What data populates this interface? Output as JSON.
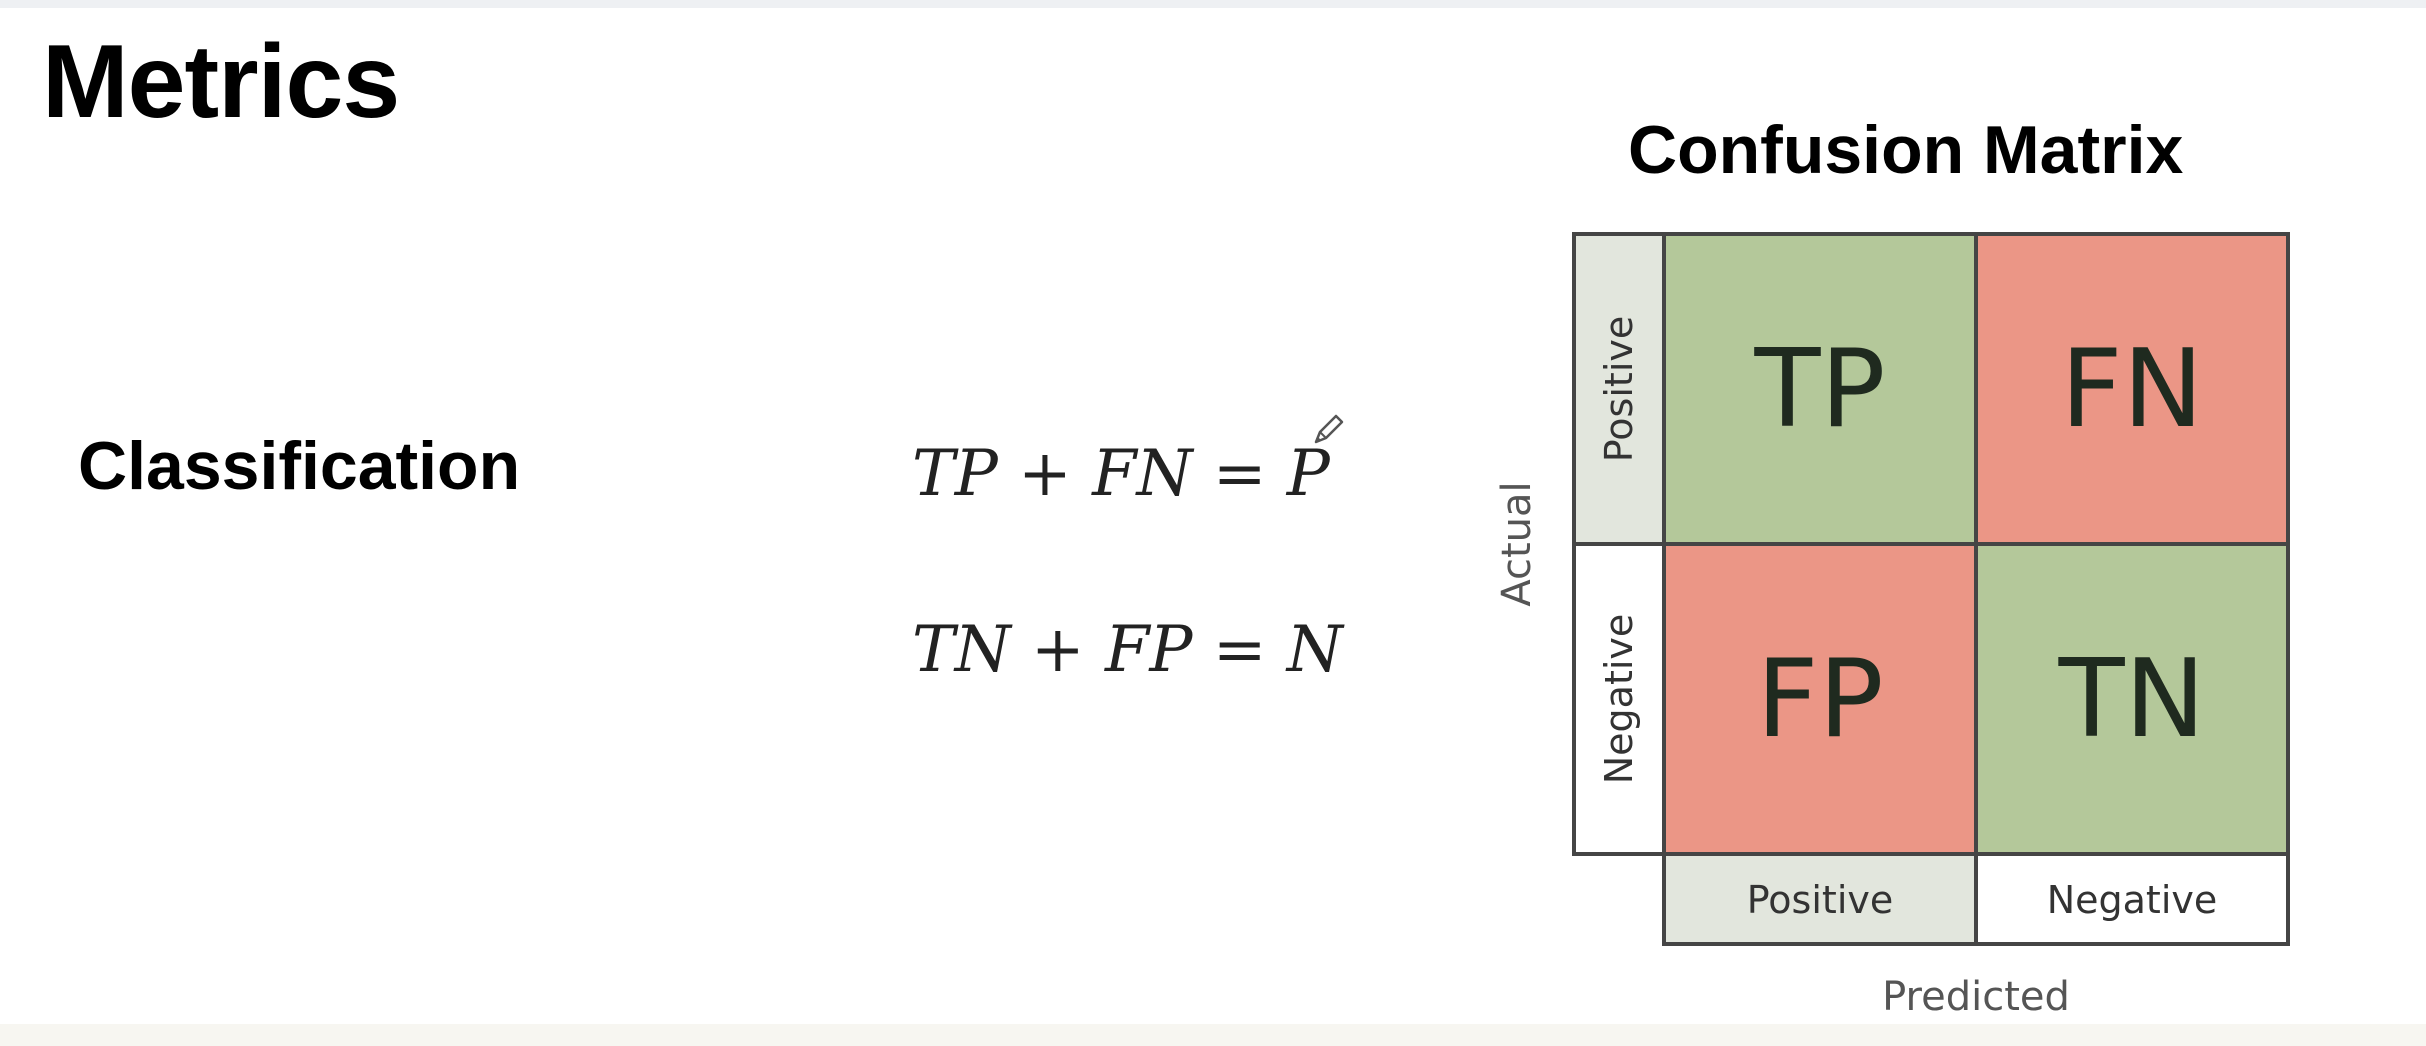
{
  "title": "Metrics",
  "section_label": "Classification",
  "equations": [
    {
      "lhs_a": "TP",
      "op": "+",
      "lhs_b": "FN",
      "eq": "=",
      "rhs": "P"
    },
    {
      "lhs_a": "TN",
      "op": "+",
      "lhs_b": "FP",
      "eq": "=",
      "rhs": "N"
    }
  ],
  "confusion_matrix": {
    "title": "Confusion Matrix",
    "actual_axis_label": "Actual",
    "predicted_axis_label": "Predicted",
    "row_labels": [
      "Positive",
      "Negative"
    ],
    "col_labels": [
      "Positive",
      "Negative"
    ],
    "cells": [
      [
        "TP",
        "FN"
      ],
      [
        "FP",
        "TN"
      ]
    ],
    "colors": {
      "correct": "#b4c89a",
      "incorrect": "#eb9686",
      "header_highlight": "#e2e6dd",
      "border": "#454545",
      "cell_text": "#1f2a1f"
    }
  },
  "icons": {
    "cursor": "pencil-icon"
  }
}
